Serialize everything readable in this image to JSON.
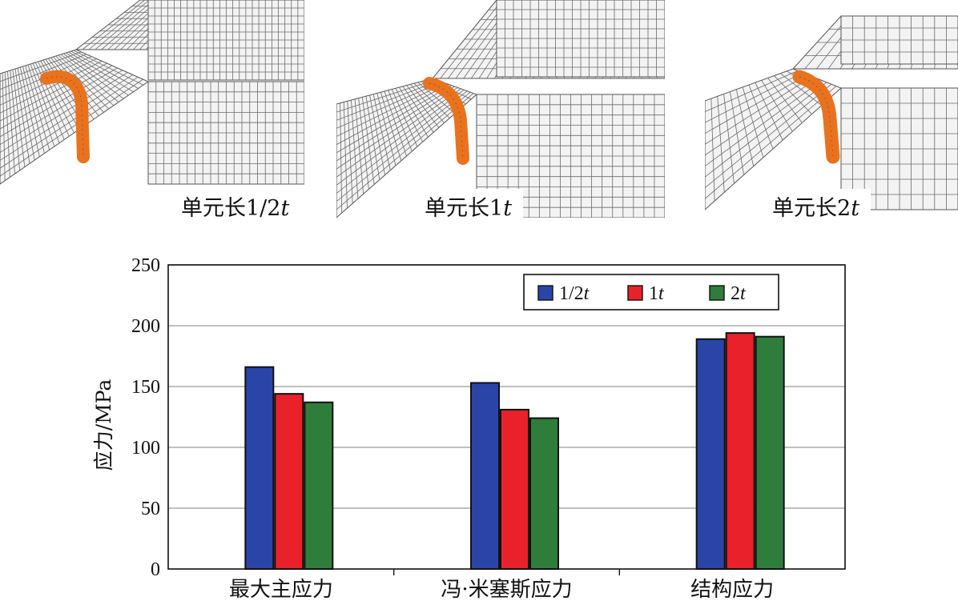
{
  "panels": [
    {
      "caption_prefix": "单元长",
      "caption_value": "1/2",
      "caption_unit": "t"
    },
    {
      "caption_prefix": "单元长",
      "caption_value": "1",
      "caption_unit": "t"
    },
    {
      "caption_prefix": "单元长",
      "caption_value": "2",
      "caption_unit": "t"
    }
  ],
  "chart_data": {
    "type": "bar",
    "categories": [
      "最大主应力",
      "冯·米塞斯应力",
      "结构应力"
    ],
    "series": [
      {
        "name": "1/2t",
        "color": "#2a44a8",
        "values": [
          166,
          153,
          189
        ]
      },
      {
        "name": "1t",
        "color": "#e8212a",
        "values": [
          144,
          131,
          194
        ]
      },
      {
        "name": "2t",
        "color": "#2e7d3a",
        "values": [
          137,
          124,
          191
        ]
      }
    ],
    "ylabel": "应力/MPa",
    "ylim": [
      0,
      250
    ],
    "yticks": [
      "0",
      "50",
      "100",
      "150",
      "200",
      "250"
    ],
    "grid": true,
    "legend_position": "top-right"
  }
}
